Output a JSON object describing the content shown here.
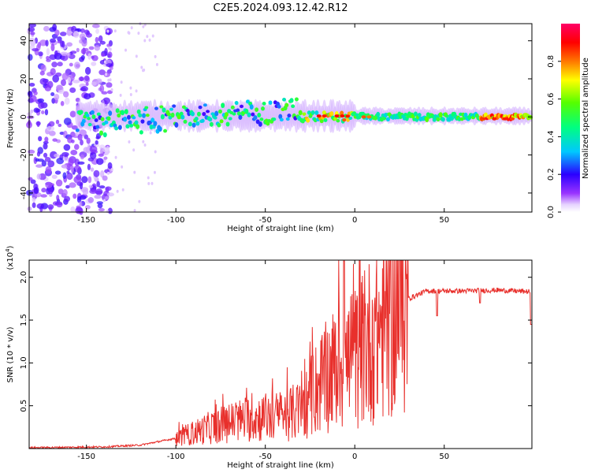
{
  "title": "C2E5.2024.093.12.42.R12",
  "chart_data": [
    {
      "type": "heatmap",
      "xlabel": "Height of straight line (km)",
      "ylabel": "Frequency (Hz)",
      "xlim": [
        -182,
        99
      ],
      "ylim": [
        -50,
        49
      ],
      "xticks": [
        -150,
        -100,
        -50,
        0,
        50
      ],
      "yticks": [
        -40,
        -20,
        0,
        20,
        40
      ],
      "colorbar": {
        "label": "Normalized spectral amplitude",
        "range": [
          0.0,
          1.0
        ],
        "ticks": [
          "0.0",
          "0.2",
          "0.4",
          "0.6",
          "0.8"
        ],
        "colormap": "rainbow (white → violet → blue → cyan → green → yellow → red → magenta)"
      },
      "features": {
        "signal_band_center_hz": 0,
        "noise_region_x": [
          -182,
          -140
        ]
      }
    },
    {
      "type": "line",
      "xlabel": "Height of straight line (km)",
      "ylabel": "SNR (10 * v/v)",
      "yscale_label": "(x10",
      "yscale_exp": "4",
      "yscale_close": ")",
      "xlim": [
        -182,
        99
      ],
      "ylim": [
        0,
        2.2
      ],
      "xticks": [
        -150,
        -100,
        -50,
        0,
        50
      ],
      "yticks": [
        0.5,
        1.0,
        1.5,
        2.0
      ],
      "ytick_labels": [
        "0.5",
        "1.0",
        "1.5",
        "2.0"
      ],
      "color": "#e8302c",
      "envelope": [
        {
          "x": -182,
          "y": 0.01
        },
        {
          "x": -140,
          "y": 0.02
        },
        {
          "x": -120,
          "y": 0.04
        },
        {
          "x": -100,
          "y": 0.12
        },
        {
          "x": -80,
          "y": 0.25
        },
        {
          "x": -60,
          "y": 0.35
        },
        {
          "x": -40,
          "y": 0.38
        },
        {
          "x": -30,
          "y": 0.45
        },
        {
          "x": -20,
          "y": 0.75
        },
        {
          "x": -10,
          "y": 0.95
        },
        {
          "x": 0,
          "y": 1.05
        },
        {
          "x": 10,
          "y": 1.3
        },
        {
          "x": 20,
          "y": 1.55
        },
        {
          "x": 30,
          "y": 1.75
        },
        {
          "x": 40,
          "y": 1.84
        },
        {
          "x": 60,
          "y": 1.84
        },
        {
          "x": 80,
          "y": 1.85
        },
        {
          "x": 99,
          "y": 1.83
        }
      ]
    }
  ]
}
